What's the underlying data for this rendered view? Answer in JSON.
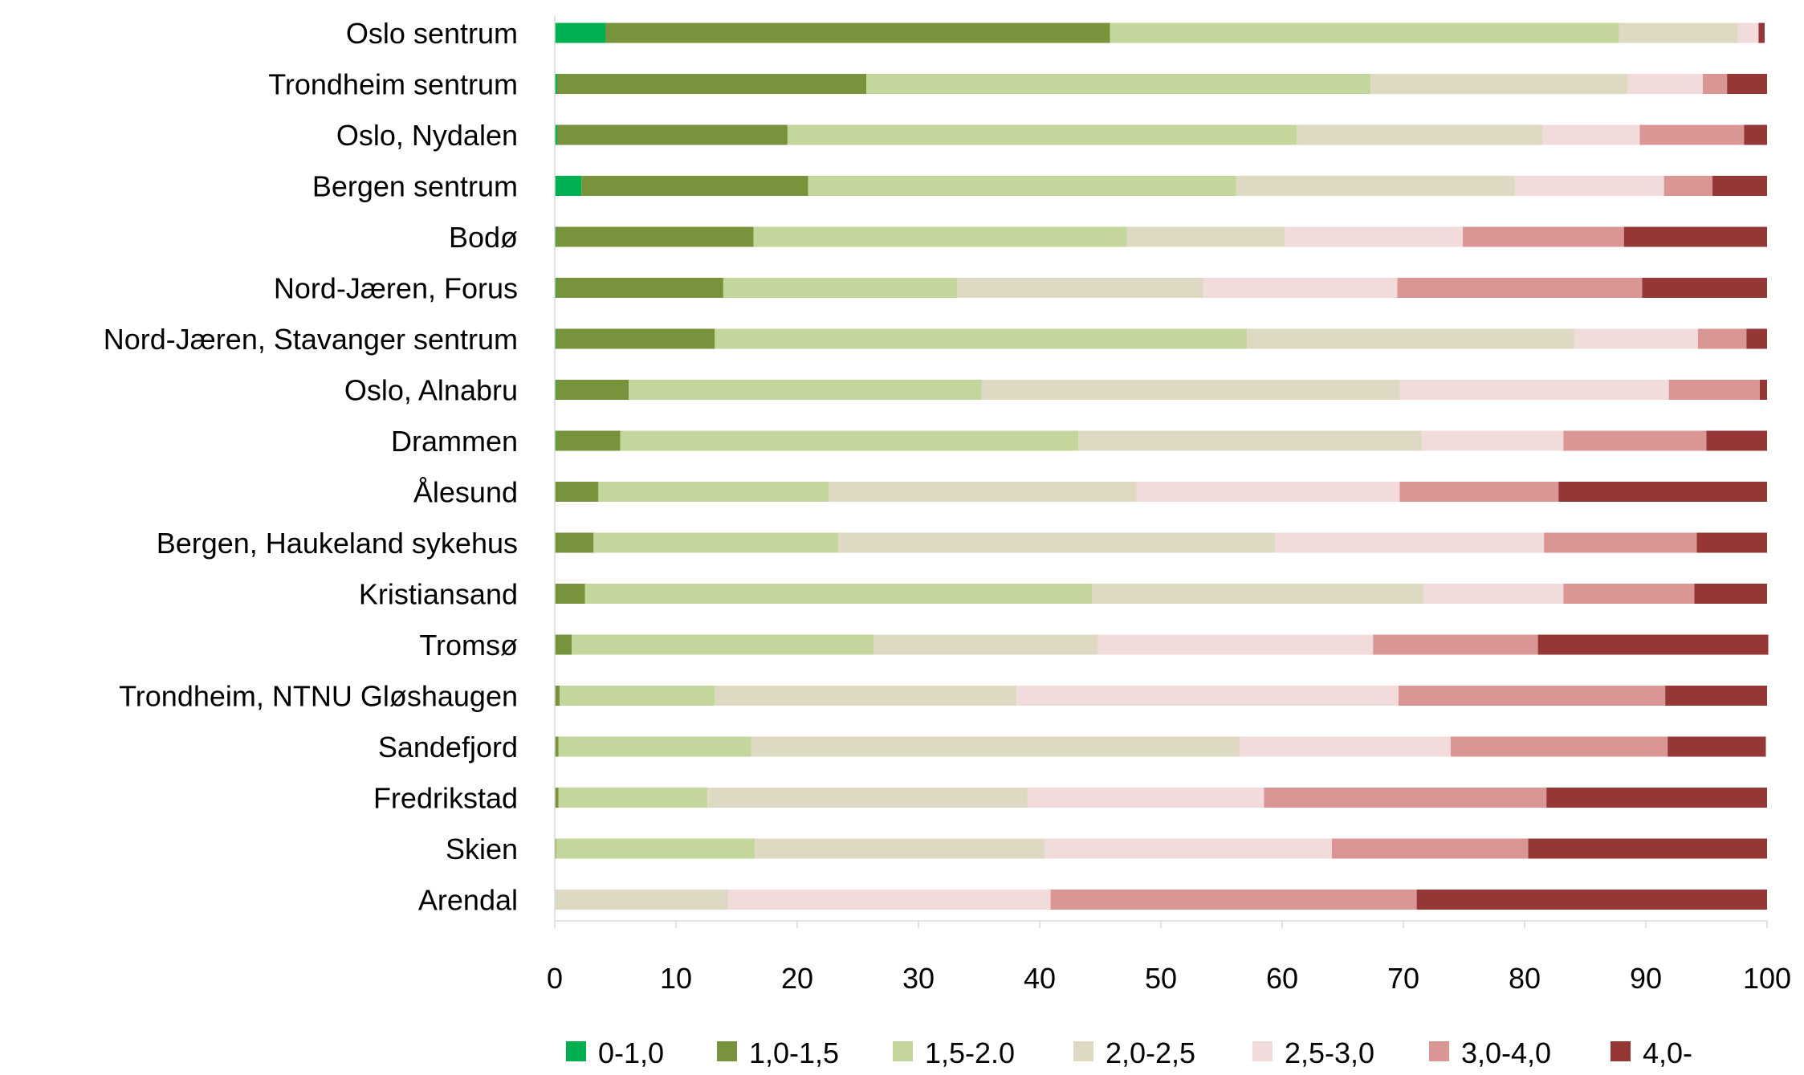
{
  "chart_data": {
    "type": "bar",
    "orientation": "horizontal",
    "stacked": true,
    "title": "",
    "xlabel": "",
    "ylabel": "",
    "xlim": [
      0,
      100
    ],
    "xticks": [
      0,
      10,
      20,
      30,
      40,
      50,
      60,
      70,
      80,
      90,
      100
    ],
    "grid": false,
    "legend_position": "bottom",
    "categories": [
      "Oslo sentrum",
      "Trondheim sentrum",
      "Oslo, Nydalen",
      "Bergen sentrum",
      "Bodø",
      "Nord-Jæren, Forus",
      "Nord-Jæren, Stavanger sentrum",
      "Oslo, Alnabru",
      "Drammen",
      "Ålesund",
      "Bergen, Haukeland sykehus",
      "Kristiansand",
      "Tromsø",
      "Trondheim, NTNU Gløshaugen",
      "Sandefjord",
      "Fredrikstad",
      "Skien",
      "Arendal"
    ],
    "series": [
      {
        "name": "0-1,0",
        "color": "#00b050",
        "values": [
          4.2,
          0.2,
          0.2,
          2.2,
          0.1,
          0.1,
          0.1,
          0.1,
          0.1,
          0,
          0,
          0,
          0,
          0,
          0,
          0,
          0,
          0
        ]
      },
      {
        "name": "1,0-1,5",
        "color": "#77933c",
        "values": [
          41.6,
          25.5,
          19.0,
          18.7,
          16.3,
          13.8,
          13.1,
          6.0,
          5.3,
          3.6,
          3.2,
          2.5,
          1.4,
          0.4,
          0.3,
          0.3,
          0.1,
          0
        ]
      },
      {
        "name": "1,5-2.0",
        "color": "#c3d69b",
        "values": [
          42.0,
          41.6,
          42.0,
          35.3,
          30.8,
          19.3,
          43.9,
          29.1,
          37.8,
          19.0,
          20.2,
          41.8,
          24.9,
          12.8,
          15.9,
          12.3,
          16.4,
          0
        ]
      },
      {
        "name": "2,0-2,5",
        "color": "#ddd9c3",
        "values": [
          9.8,
          21.2,
          20.3,
          23.0,
          13.0,
          20.3,
          27.0,
          34.5,
          28.3,
          25.4,
          36.0,
          27.4,
          18.5,
          24.9,
          40.3,
          26.4,
          23.9,
          14.3
        ]
      },
      {
        "name": "2,5-3,0",
        "color": "#f2dcdb",
        "values": [
          1.7,
          6.2,
          8.0,
          12.3,
          14.7,
          16.0,
          10.2,
          22.2,
          11.7,
          21.7,
          22.2,
          11.5,
          22.7,
          31.5,
          17.4,
          19.5,
          23.7,
          26.6
        ]
      },
      {
        "name": "3,0-4,0",
        "color": "#d99694",
        "values": [
          0,
          2.0,
          8.6,
          4.0,
          13.3,
          20.2,
          4.0,
          7.5,
          11.8,
          13.1,
          12.6,
          10.8,
          13.6,
          22.0,
          17.9,
          23.3,
          16.2,
          30.2
        ]
      },
      {
        "name": "4,0-",
        "color": "#953735",
        "values": [
          0.5,
          3.3,
          1.9,
          4.5,
          11.8,
          10.3,
          1.7,
          0.6,
          5.0,
          17.2,
          5.8,
          6.0,
          19.0,
          8.4,
          8.1,
          18.2,
          19.7,
          28.9
        ]
      }
    ]
  }
}
